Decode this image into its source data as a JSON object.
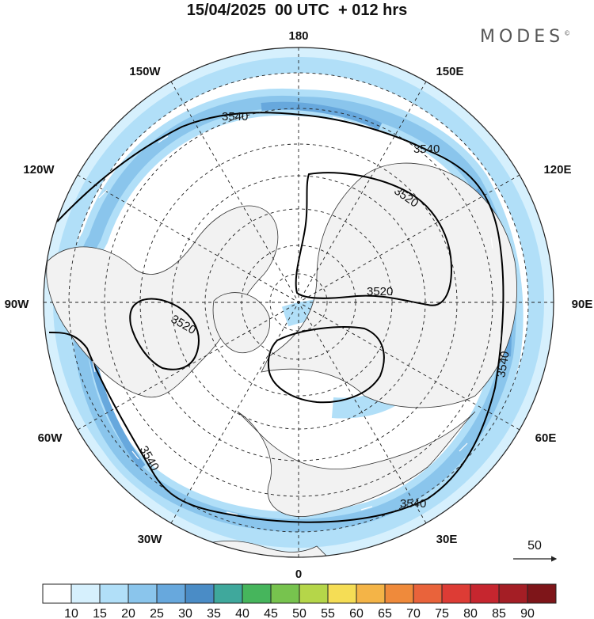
{
  "header": {
    "title": "15/04/2025  00 UTC  + 012 hrs",
    "brand": "MODES",
    "brand_mark": "©"
  },
  "map": {
    "projection": "north-polar-stereographic",
    "longitude_labels": [
      "180",
      "150E",
      "120E",
      "90E",
      "60E",
      "30E",
      "0",
      "30W",
      "60W",
      "90W",
      "120W",
      "150W"
    ],
    "contours": [
      {
        "value": "3540",
        "label_count": 5
      },
      {
        "value": "3520",
        "label_count": 3
      }
    ],
    "vector_reference": {
      "label": "50"
    }
  },
  "colorbar": {
    "labels": [
      "10",
      "15",
      "20",
      "25",
      "30",
      "35",
      "40",
      "45",
      "50",
      "55",
      "60",
      "65",
      "70",
      "75",
      "80",
      "85",
      "90"
    ],
    "colors": [
      "#ffffff",
      "#d6f0fd",
      "#b1dff8",
      "#8ac5ec",
      "#67a8dd",
      "#4a8cc6",
      "#3fa89c",
      "#46b55c",
      "#77c34e",
      "#b5d649",
      "#f5dd55",
      "#f4b447",
      "#ef8a3b",
      "#e9633b",
      "#dd3c35",
      "#c6262f",
      "#a41e25",
      "#7e1519"
    ]
  },
  "style": {
    "land_fill": "#f2f2f2",
    "contour_color": "#000000",
    "grid_color": "#222222"
  }
}
